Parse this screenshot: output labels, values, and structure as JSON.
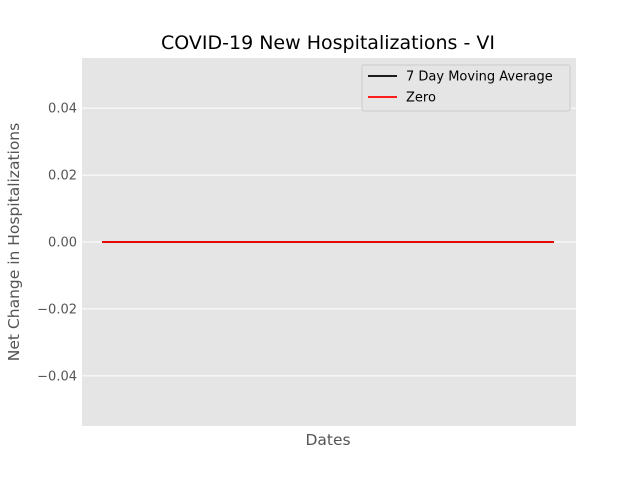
{
  "chart_data": {
    "type": "line",
    "title": "COVID-19 New Hospitalizations - VI",
    "xlabel": "Dates",
    "ylabel": "Net Change in Hospitalizations",
    "ylim": [
      -0.055,
      0.055
    ],
    "yticks": [
      -0.04,
      -0.02,
      0.0,
      0.02,
      0.04
    ],
    "ytick_labels": [
      "−0.04",
      "−0.02",
      "0.00",
      "0.02",
      "0.04"
    ],
    "x_tick_labels": [],
    "grid": true,
    "legend_position": "top-right",
    "series": [
      {
        "name": "7 Day Moving Average",
        "color": "#000000",
        "x": [
          0,
          1
        ],
        "y": [
          0,
          0
        ]
      },
      {
        "name": "Zero",
        "color": "#ff0000",
        "x": [
          0,
          1
        ],
        "y": [
          0,
          0
        ]
      }
    ],
    "colors": {
      "plot_background": "#e5e5e5",
      "grid": "#ffffff"
    }
  }
}
